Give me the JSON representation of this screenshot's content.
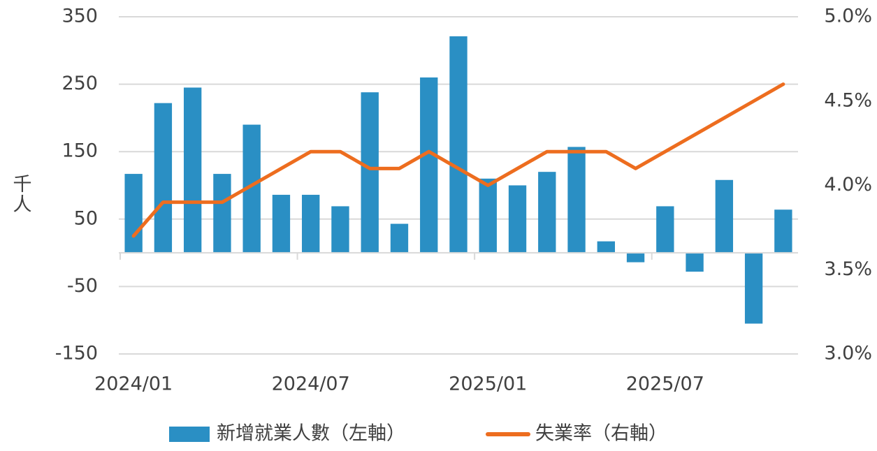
{
  "chart_data": {
    "type": "bar",
    "y_label": "千人",
    "categories": [
      "2024/01",
      null,
      null,
      null,
      null,
      null,
      "2024/07",
      null,
      null,
      null,
      null,
      null,
      "2025/01",
      null,
      null,
      null,
      null,
      null,
      "2025/07",
      null,
      null,
      null,
      null
    ],
    "series": [
      {
        "name": "新增就業人數（左軸）",
        "type": "bar",
        "color": "#2a8fc4",
        "values": [
          117,
          222,
          245,
          117,
          190,
          86,
          86,
          69,
          238,
          43,
          260,
          321,
          110,
          100,
          120,
          157,
          17,
          -14,
          69,
          -28,
          108,
          -105,
          64
        ]
      },
      {
        "name": "失業率（右軸）",
        "type": "line",
        "axis": "y2",
        "color": "#ed6d1f",
        "values": [
          3.7,
          3.9,
          3.9,
          3.9,
          4.0,
          4.1,
          4.2,
          4.2,
          4.1,
          4.1,
          4.2,
          4.1,
          4.0,
          4.1,
          4.2,
          4.2,
          4.2,
          4.1,
          4.2,
          4.3,
          4.4,
          4.5,
          4.6
        ]
      }
    ],
    "ylim": [
      -150,
      350
    ],
    "yticks": [
      350,
      250,
      150,
      50,
      -50,
      -150
    ],
    "y2lim": [
      3.0,
      5.0
    ],
    "y2ticks": [
      {
        "value": 5.0,
        "label": "5.0%"
      },
      {
        "value": 4.5,
        "label": "4.5%"
      },
      {
        "value": 4.0,
        "label": "4.0%"
      },
      {
        "value": 3.5,
        "label": "3.5%"
      },
      {
        "value": 3.0,
        "label": "3.0%"
      }
    ],
    "grid": true,
    "legend": "bottom"
  }
}
